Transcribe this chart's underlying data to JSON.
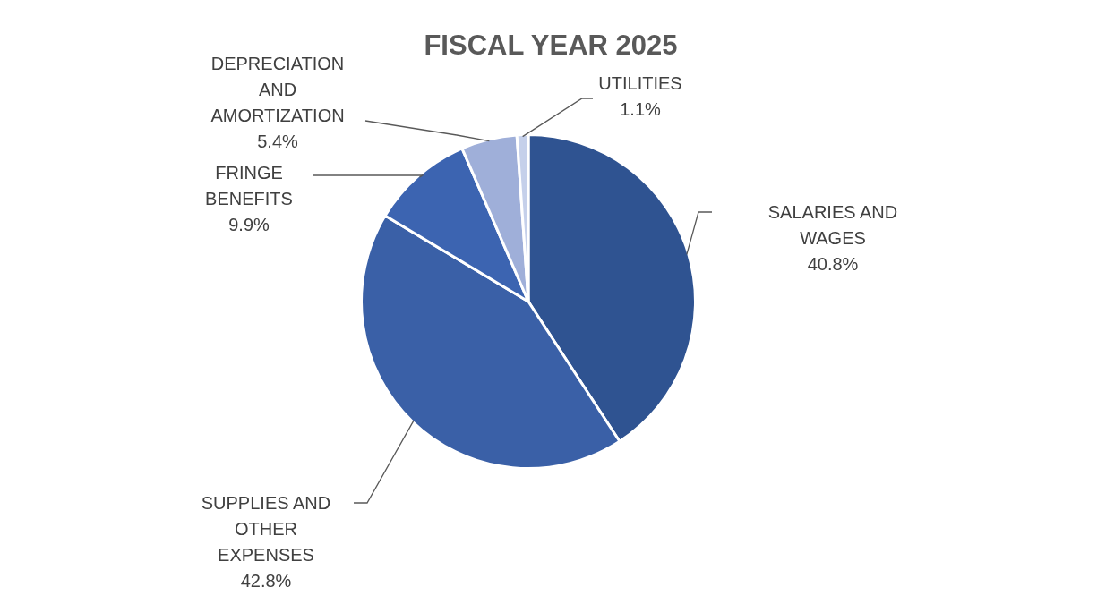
{
  "chart_data": {
    "type": "pie",
    "title": "FISCAL YEAR 2025",
    "categories": [
      "SALARIES AND WAGES",
      "SUPPLIES AND OTHER EXPENSES",
      "FRINGE BENEFITS",
      "DEPRECIATION AND AMORTIZATION",
      "UTILITIES"
    ],
    "values": [
      40.8,
      42.8,
      9.9,
      5.4,
      1.1
    ],
    "value_labels": [
      "40.8%",
      "42.8%",
      "9.9%",
      "5.4%",
      "1.1%"
    ],
    "colors": [
      "#2f5391",
      "#3a60a7",
      "#3c64b1",
      "#9fafd9",
      "#c5d0ea"
    ],
    "legend": false
  }
}
